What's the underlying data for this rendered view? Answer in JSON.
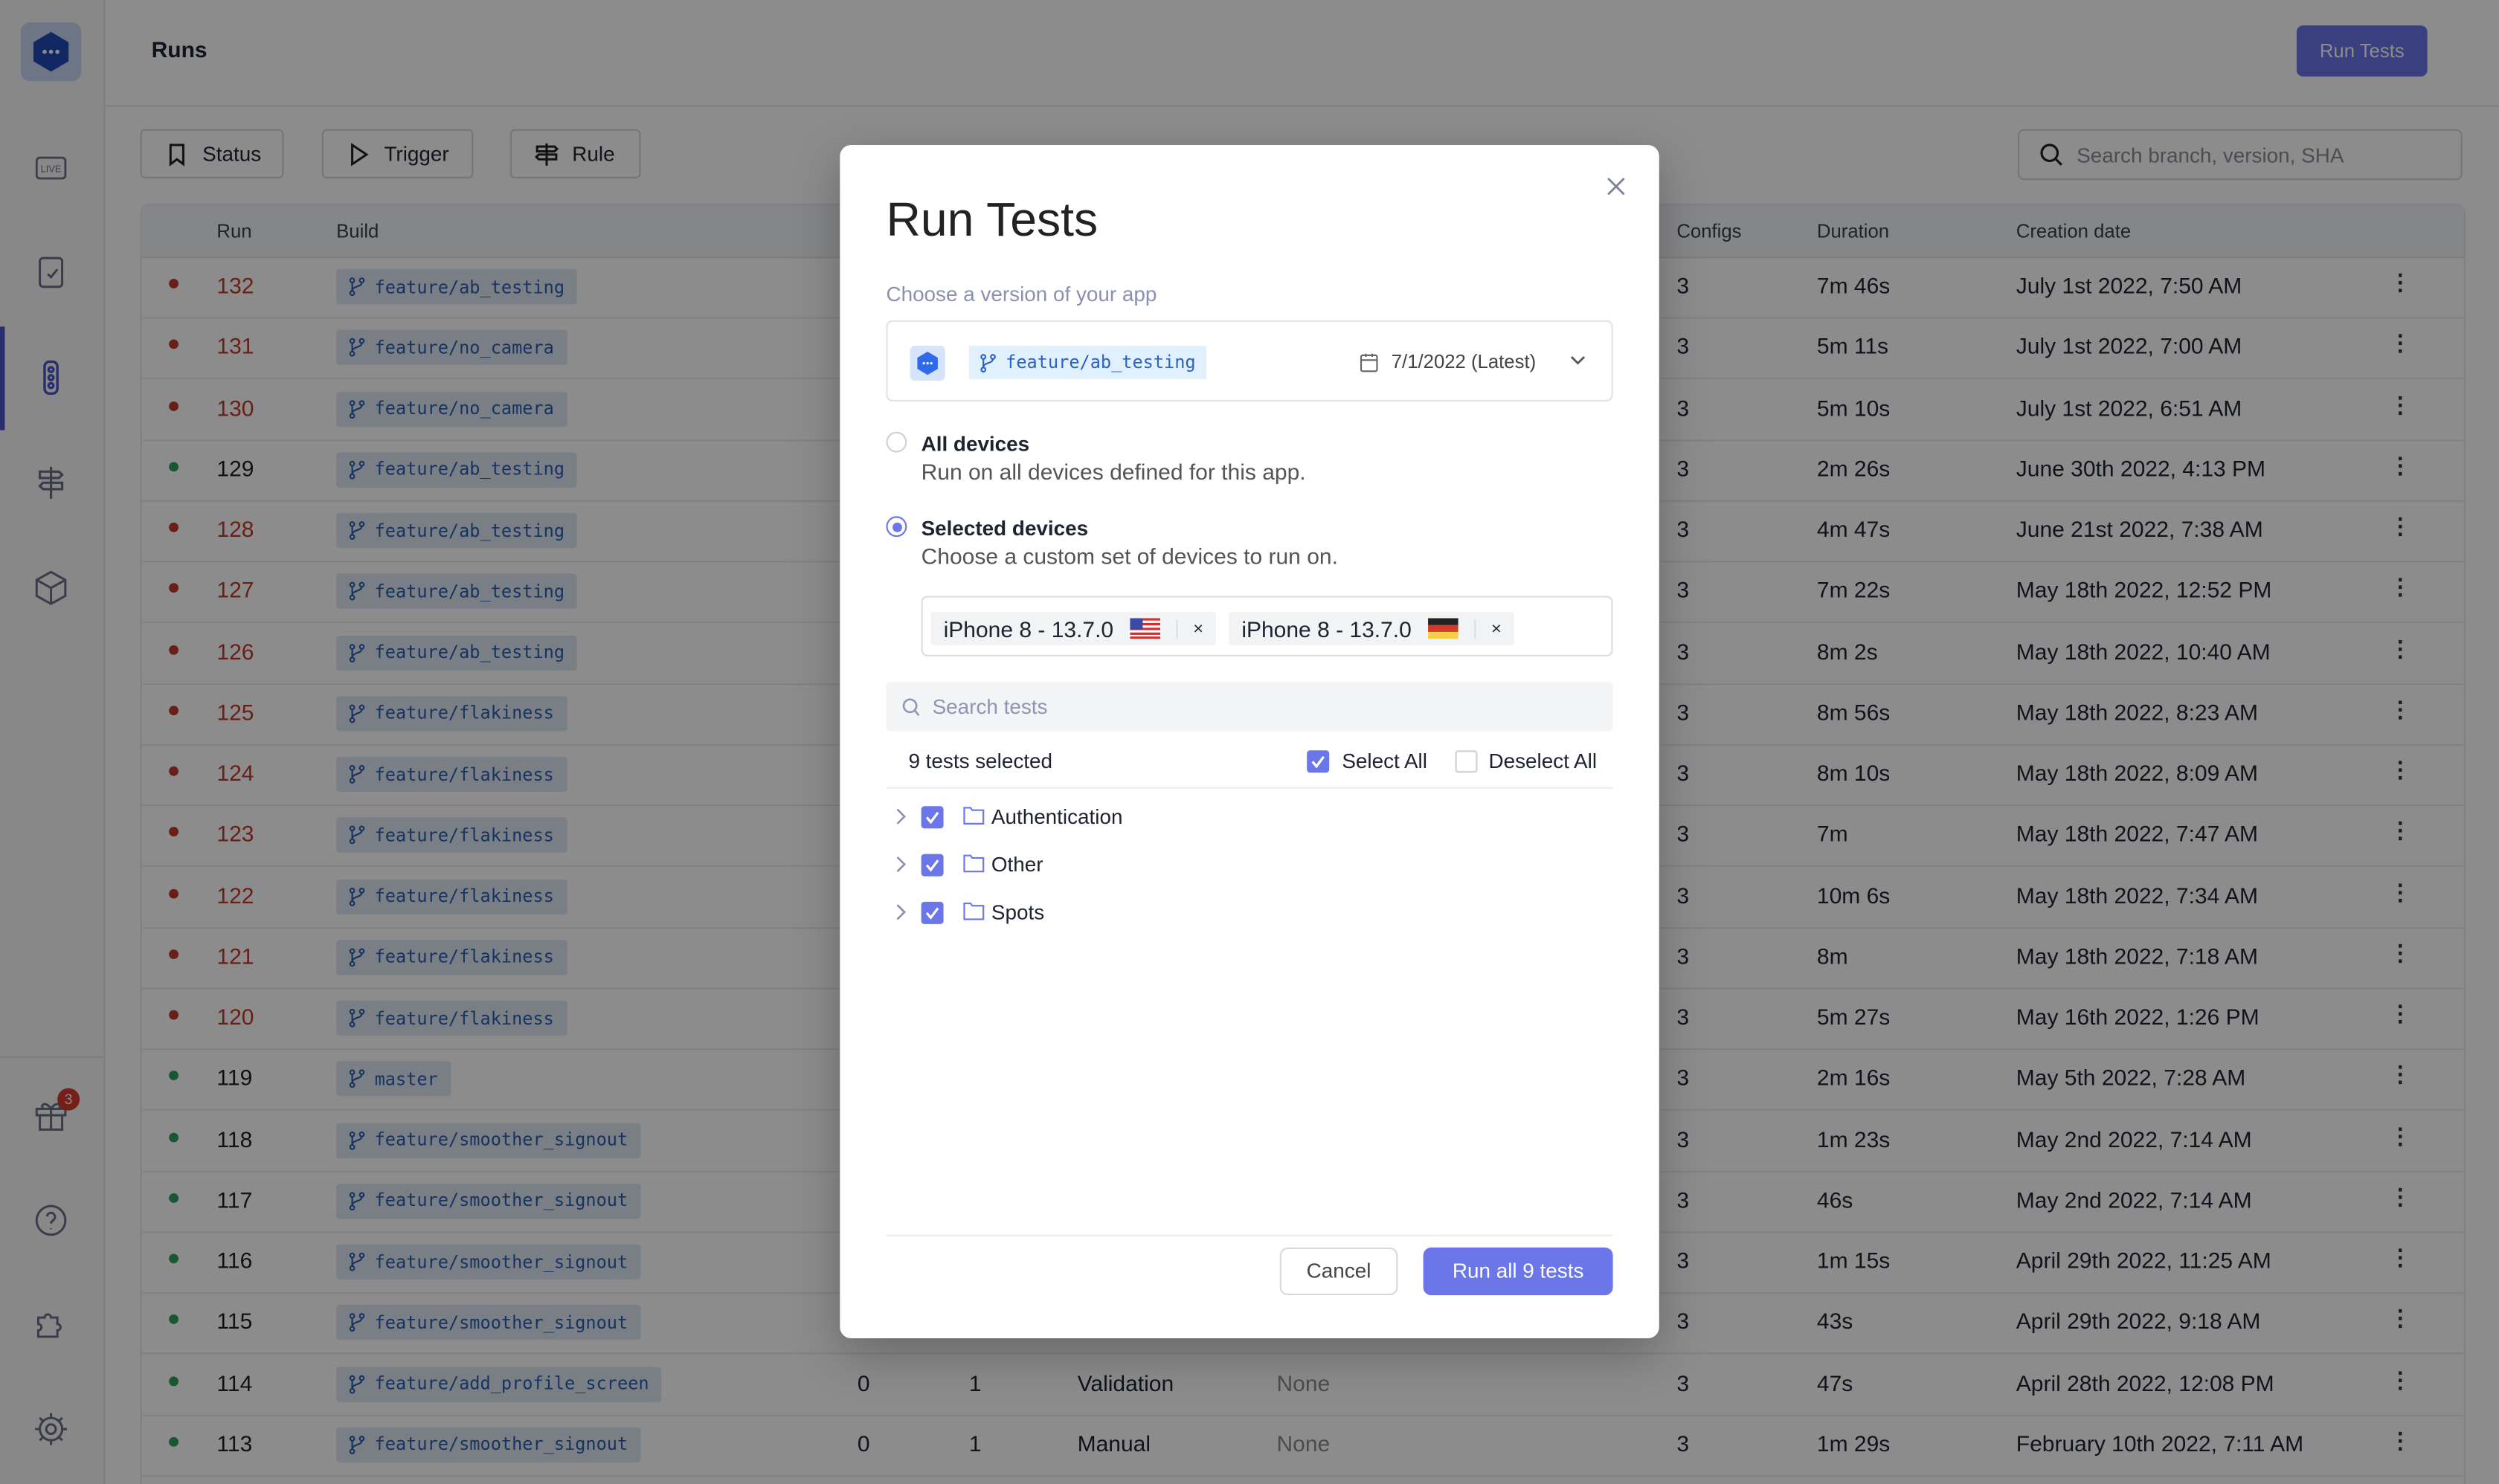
{
  "header": {
    "title": "Runs",
    "run_tests_button": "Run Tests"
  },
  "sidebar": {
    "items": [
      {
        "icon": "live-icon"
      },
      {
        "icon": "checklist-icon"
      },
      {
        "icon": "traffic-light-icon",
        "active": true
      },
      {
        "icon": "signpost-icon"
      },
      {
        "icon": "cube-icon"
      },
      {
        "icon": "gift-icon",
        "badge": "3"
      },
      {
        "icon": "help-icon"
      },
      {
        "icon": "puzzle-icon"
      },
      {
        "icon": "gear-icon"
      }
    ]
  },
  "filters": {
    "status": "Status",
    "trigger": "Trigger",
    "rule": "Rule",
    "search_placeholder": "Search branch, version, SHA"
  },
  "table": {
    "columns": {
      "run": "Run",
      "build": "Build",
      "configs": "Configs",
      "duration": "Duration",
      "creation_date": "Creation date"
    },
    "rows": [
      {
        "run": "132",
        "status": "failed",
        "build": "feature/ab_testing",
        "configs": "3",
        "duration": "7m 46s",
        "date": "July 1st 2022, 7:50 AM"
      },
      {
        "run": "131",
        "status": "failed",
        "build": "feature/no_camera",
        "configs": "3",
        "duration": "5m 11s",
        "date": "July 1st 2022, 7:00 AM"
      },
      {
        "run": "130",
        "status": "failed",
        "build": "feature/no_camera",
        "configs": "3",
        "duration": "5m 10s",
        "date": "July 1st 2022, 6:51 AM"
      },
      {
        "run": "129",
        "status": "passed",
        "build": "feature/ab_testing",
        "configs": "3",
        "duration": "2m 26s",
        "date": "June 30th 2022, 4:13 PM"
      },
      {
        "run": "128",
        "status": "failed",
        "build": "feature/ab_testing",
        "configs": "3",
        "duration": "4m 47s",
        "date": "June 21st 2022, 7:38 AM"
      },
      {
        "run": "127",
        "status": "failed",
        "build": "feature/ab_testing",
        "configs": "3",
        "duration": "7m 22s",
        "date": "May 18th 2022, 12:52 PM"
      },
      {
        "run": "126",
        "status": "failed",
        "build": "feature/ab_testing",
        "configs": "3",
        "duration": "8m 2s",
        "date": "May 18th 2022, 10:40 AM"
      },
      {
        "run": "125",
        "status": "failed",
        "build": "feature/flakiness",
        "configs": "3",
        "duration": "8m 56s",
        "date": "May 18th 2022, 8:23 AM"
      },
      {
        "run": "124",
        "status": "failed",
        "build": "feature/flakiness",
        "configs": "3",
        "duration": "8m 10s",
        "date": "May 18th 2022, 8:09 AM"
      },
      {
        "run": "123",
        "status": "failed",
        "build": "feature/flakiness",
        "configs": "3",
        "duration": "7m",
        "date": "May 18th 2022, 7:47 AM"
      },
      {
        "run": "122",
        "status": "failed",
        "build": "feature/flakiness",
        "configs": "3",
        "duration": "10m 6s",
        "date": "May 18th 2022, 7:34 AM"
      },
      {
        "run": "121",
        "status": "failed",
        "build": "feature/flakiness",
        "configs": "3",
        "duration": "8m",
        "date": "May 18th 2022, 7:18 AM"
      },
      {
        "run": "120",
        "status": "failed",
        "build": "feature/flakiness",
        "configs": "3",
        "duration": "5m 27s",
        "date": "May 16th 2022, 1:26 PM"
      },
      {
        "run": "119",
        "status": "passed",
        "build": "master",
        "configs": "3",
        "duration": "2m 16s",
        "date": "May 5th 2022, 7:28 AM"
      },
      {
        "run": "118",
        "status": "passed",
        "build": "feature/smoother_signout",
        "configs": "3",
        "duration": "1m 23s",
        "date": "May 2nd 2022, 7:14 AM"
      },
      {
        "run": "117",
        "status": "passed",
        "build": "feature/smoother_signout",
        "configs": "3",
        "duration": "46s",
        "date": "May 2nd 2022, 7:14 AM"
      },
      {
        "run": "116",
        "status": "passed",
        "build": "feature/smoother_signout",
        "configs": "3",
        "duration": "1m 15s",
        "date": "April 29th 2022, 11:25 AM"
      },
      {
        "run": "115",
        "status": "passed",
        "build": "feature/smoother_signout",
        "configs": "3",
        "duration": "43s",
        "date": "April 29th 2022, 9:18 AM"
      },
      {
        "run": "114",
        "status": "passed",
        "build": "feature/add_profile_screen",
        "c1": "0",
        "c2": "1",
        "trigger": "Validation",
        "rule": "None",
        "configs": "3",
        "duration": "47s",
        "date": "April 28th 2022, 12:08 PM"
      },
      {
        "run": "113",
        "status": "passed",
        "build": "feature/smoother_signout",
        "c1": "0",
        "c2": "1",
        "trigger": "Manual",
        "rule": "None",
        "configs": "3",
        "duration": "1m 29s",
        "date": "February 10th 2022, 7:11 AM"
      }
    ]
  },
  "modal": {
    "title": "Run Tests",
    "version_label": "Choose a version of your app",
    "version": {
      "branch": "feature/ab_testing",
      "date": "7/1/2022 (Latest)"
    },
    "all_devices": {
      "label": "All devices",
      "description": "Run on all devices defined for this app.",
      "selected": false
    },
    "selected_devices": {
      "label": "Selected devices",
      "description": "Choose a custom set of devices to run on.",
      "selected": true
    },
    "devices": [
      {
        "name": "iPhone 8 - 13.7.0",
        "flag": "us-flag"
      },
      {
        "name": "iPhone 8 - 13.7.0",
        "flag": "de-flag"
      }
    ],
    "search_placeholder": "Search tests",
    "selected_count": "9 tests selected",
    "select_all": "Select All",
    "select_all_checked": true,
    "deselect_all": "Deselect All",
    "deselect_all_checked": false,
    "folders": [
      {
        "name": "Authentication",
        "checked": true
      },
      {
        "name": "Other",
        "checked": true
      },
      {
        "name": "Spots",
        "checked": true
      }
    ],
    "cancel": "Cancel",
    "run": "Run all 9 tests"
  },
  "colors": {
    "accent": "#6b76e8",
    "failed": "#c0392b",
    "passed": "#2e9e5b",
    "branch_chip": "#e0f0fd"
  }
}
